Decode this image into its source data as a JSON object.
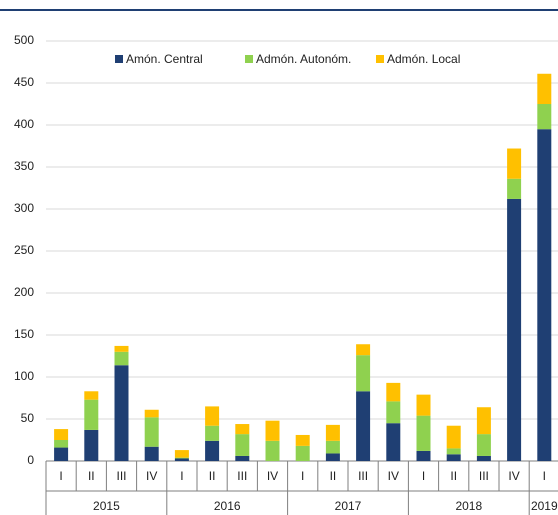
{
  "chart_data": {
    "type": "bar",
    "stacked": true,
    "categories": [
      "I",
      "II",
      "III",
      "IV",
      "I",
      "II",
      "III",
      "IV",
      "I",
      "II",
      "III",
      "IV",
      "I",
      "II",
      "III",
      "IV",
      "I"
    ],
    "groups": [
      {
        "label": "2015",
        "span": 4
      },
      {
        "label": "2016",
        "span": 4
      },
      {
        "label": "2017",
        "span": 4
      },
      {
        "label": "2018",
        "span": 4
      },
      {
        "label": "2019",
        "span": 1
      }
    ],
    "series": [
      {
        "name": "Amón. Central",
        "color": "#1f3f73",
        "values": [
          16,
          37,
          114,
          17,
          3,
          24,
          6,
          0,
          0,
          9,
          83,
          45,
          12,
          8,
          6,
          312,
          395
        ]
      },
      {
        "name": "Admón. Autonóm.",
        "color": "#8fd14f",
        "values": [
          9,
          36,
          16,
          35,
          1,
          18,
          26,
          24,
          18,
          15,
          43,
          26,
          42,
          7,
          26,
          24,
          30
        ]
      },
      {
        "name": "Admón. Local",
        "color": "#ffc000",
        "values": [
          13,
          10,
          7,
          9,
          9,
          23,
          12,
          24,
          13,
          19,
          13,
          22,
          25,
          27,
          32,
          36,
          36
        ]
      }
    ],
    "ylim": [
      0,
      500
    ],
    "yticks": [
      0,
      50,
      100,
      150,
      200,
      250,
      300,
      350,
      400,
      450,
      500
    ],
    "grid": true,
    "legend": "top"
  }
}
